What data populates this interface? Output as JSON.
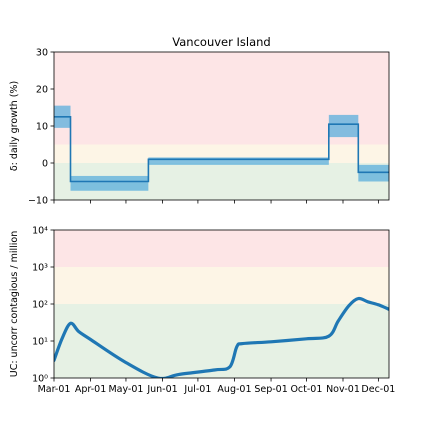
{
  "chart_data": [
    {
      "type": "line",
      "title": "Vancouver Island",
      "ylabel": "δ: daily growth (%)",
      "ylim": [
        -10,
        30
      ],
      "yticks": [
        "−10",
        "0",
        "10",
        "20",
        "30"
      ],
      "zones": [
        {
          "from": 5,
          "to": 30,
          "color": "#fde5e6"
        },
        {
          "from": 0,
          "to": 5,
          "color": "#fdf5e6"
        },
        {
          "from": -10,
          "to": 0,
          "color": "#e6f1e4"
        }
      ],
      "x_start": "2020-03-01",
      "x_end": "2020-12-10",
      "series": [
        {
          "points": [
            {
              "x": "2020-03-01",
              "y": 12.5,
              "lo": 9.5,
              "hi": 15.5
            },
            {
              "x": "2020-03-15",
              "y": -5.0,
              "lo": -7.5,
              "hi": -3.5
            },
            {
              "x": "2020-05-20",
              "y": 1.0,
              "lo": -0.5,
              "hi": 1.5
            },
            {
              "x": "2020-10-20",
              "y": 10.5,
              "lo": 7.0,
              "hi": 13.0
            },
            {
              "x": "2020-11-14",
              "y": -2.5,
              "lo": -5.0,
              "hi": -0.5
            }
          ],
          "color": "#1f77b4",
          "band_color": "#5aaedc"
        }
      ]
    },
    {
      "type": "line",
      "ylabel": "UC: uncorr contagious / million",
      "yscale": "log",
      "ylim": [
        1,
        10000
      ],
      "yticks": [
        "10⁰",
        "10¹",
        "10²",
        "10³",
        "10⁴"
      ],
      "zones": [
        {
          "from": 1000,
          "to": 10000,
          "color": "#fde5e6"
        },
        {
          "from": 100,
          "to": 1000,
          "color": "#fdf5e6"
        },
        {
          "from": 1,
          "to": 100,
          "color": "#e6f1e4"
        }
      ],
      "x_start": "2020-03-01",
      "x_end": "2020-12-10",
      "xticks": [
        "Mar-01",
        "Apr-01",
        "May-01",
        "Jun-01",
        "Jul-01",
        "Aug-01",
        "Sep-01",
        "Oct-01",
        "Nov-01",
        "Dec-01"
      ],
      "series": [
        {
          "color": "#1f77b4",
          "points": [
            {
              "x": "2020-03-01",
              "y": 3
            },
            {
              "x": "2020-03-08",
              "y": 12
            },
            {
              "x": "2020-03-15",
              "y": 30
            },
            {
              "x": "2020-03-22",
              "y": 18
            },
            {
              "x": "2020-04-01",
              "y": 11
            },
            {
              "x": "2020-05-01",
              "y": 2.6
            },
            {
              "x": "2020-05-28",
              "y": 1.0
            },
            {
              "x": "2020-06-15",
              "y": 1.25
            },
            {
              "x": "2020-07-15",
              "y": 1.65
            },
            {
              "x": "2020-07-28",
              "y": 2.0
            },
            {
              "x": "2020-08-03",
              "y": 7.0
            },
            {
              "x": "2020-08-08",
              "y": 8.5
            },
            {
              "x": "2020-09-01",
              "y": 9.5
            },
            {
              "x": "2020-10-01",
              "y": 11.5
            },
            {
              "x": "2020-10-20",
              "y": 13.5
            },
            {
              "x": "2020-10-28",
              "y": 35
            },
            {
              "x": "2020-11-06",
              "y": 90
            },
            {
              "x": "2020-11-14",
              "y": 140
            },
            {
              "x": "2020-11-22",
              "y": 115
            },
            {
              "x": "2020-12-01",
              "y": 95
            },
            {
              "x": "2020-12-10",
              "y": 72
            }
          ]
        }
      ]
    }
  ]
}
